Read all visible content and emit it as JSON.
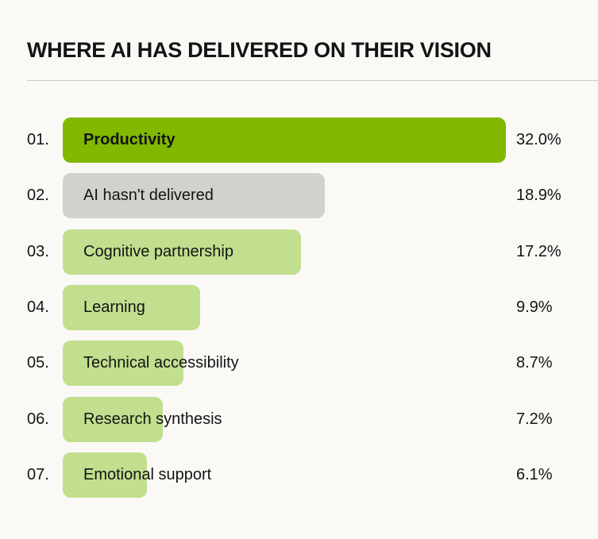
{
  "chart_data": {
    "type": "bar",
    "orientation": "horizontal",
    "title": "WHERE AI HAS DELIVERED ON THEIR VISION",
    "categories": [
      "Productivity",
      "AI hasn't delivered",
      "Cognitive partnership",
      "Learning",
      "Technical accessibility",
      "Research synthesis",
      "Emotional support"
    ],
    "ranks": [
      "01.",
      "02.",
      "03.",
      "04.",
      "05.",
      "06.",
      "07."
    ],
    "values": [
      32.0,
      18.9,
      17.2,
      9.9,
      8.7,
      7.2,
      6.1
    ],
    "value_labels": [
      "32.0%",
      "18.9%",
      "17.2%",
      "9.9%",
      "8.7%",
      "7.2%",
      "6.1%"
    ],
    "bar_colors": [
      "#82b800",
      "#d3d1cd",
      "#c1df8e",
      "#c1df8e",
      "#c1df8e",
      "#c1df8e",
      "#c1df8e"
    ],
    "unit": "%",
    "xlim": [
      0,
      32.0
    ],
    "grid": false
  }
}
